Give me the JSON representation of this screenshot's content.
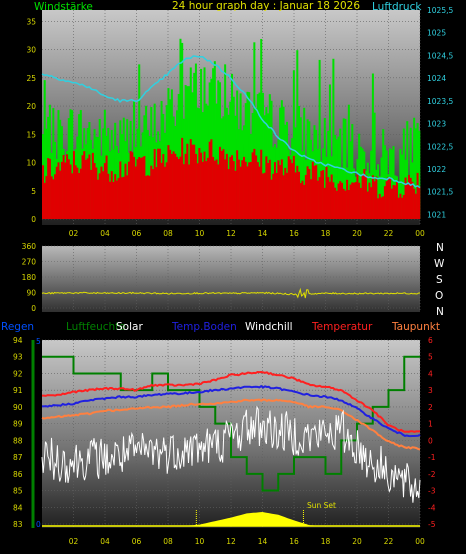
{
  "header": {
    "left_title": "Windstärke",
    "center_title": "24 hour graph day : Januar 18 2026",
    "right_title": "Luftdruck"
  },
  "legend_row": {
    "regen": "Regen",
    "luftfeuchte": "Luftfeuchte",
    "solar": "Solar",
    "temp_boden": "Temp.Boden",
    "windchill": "Windchill",
    "temperatur": "Temperatur",
    "taupunkt": "Taupunkt"
  },
  "direction_labels": [
    "N",
    "W",
    "S",
    "O",
    "N"
  ],
  "annotations": {
    "sun_set": "Sun Set",
    "sun_rise_set_label": "SunSet"
  },
  "colors": {
    "wind_gust": "#00e000",
    "wind_avg": "#e00000",
    "pressure": "#30d0e0",
    "direction": "#e0e000",
    "humidity": "#008000",
    "regen": "#0050ff",
    "solar": "#ffff00",
    "temp_boden": "#2020e0",
    "windchill": "#ffffff",
    "temperatur": "#ff2020",
    "taupunkt": "#ff8040",
    "grid": "#606060",
    "tick_yellow": "#d8d800"
  },
  "chart_data": [
    {
      "type": "line",
      "title": "24 hour graph day : Januar 18 2026",
      "x_ticks": [
        "02",
        "04",
        "06",
        "08",
        "10",
        "12",
        "14",
        "16",
        "18",
        "20",
        "22",
        "00"
      ],
      "y_left_label": "Windstärke",
      "y_left_ticks": [
        "0",
        "5",
        "10",
        "15",
        "20",
        "25",
        "30",
        "35"
      ],
      "y_left_range": [
        0,
        37
      ],
      "y_right_label": "Luftdruck",
      "y_right_ticks": [
        "1021",
        "1021,5",
        "1022",
        "1022,5",
        "1023",
        "1023,5",
        "1024",
        "1024,5",
        "1025",
        "1025,5"
      ],
      "y_right_range": [
        1020.9,
        1025.5
      ],
      "hours": [
        0,
        1,
        2,
        3,
        4,
        5,
        6,
        7,
        8,
        9,
        10,
        11,
        12,
        13,
        14,
        15,
        16,
        17,
        18,
        19,
        20,
        21,
        22,
        23,
        24
      ],
      "series": [
        {
          "name": "Windstärke Böen",
          "axis": "left",
          "values": [
            14,
            15,
            16,
            15,
            15,
            14,
            15,
            16,
            19,
            22,
            24,
            23,
            21,
            19,
            18,
            17,
            16,
            15,
            14,
            13,
            12,
            12,
            11,
            12,
            14
          ]
        },
        {
          "name": "Windstärke Mittel",
          "axis": "left",
          "values": [
            8,
            9,
            10,
            10,
            9,
            9,
            10,
            10,
            11,
            12,
            12,
            12,
            11,
            11,
            10,
            9,
            9,
            8,
            8,
            7,
            7,
            6,
            6,
            6,
            7
          ]
        },
        {
          "name": "Luftdruck",
          "axis": "right",
          "values": [
            1024.1,
            1024.0,
            1023.9,
            1023.8,
            1023.6,
            1023.5,
            1023.5,
            1023.8,
            1024.1,
            1024.4,
            1024.5,
            1024.3,
            1024.0,
            1023.6,
            1023.1,
            1022.7,
            1022.4,
            1022.2,
            1022.1,
            1022.0,
            1021.9,
            1021.8,
            1021.8,
            1021.7,
            1021.6
          ]
        }
      ]
    },
    {
      "type": "line",
      "y_ticks": [
        "0",
        "90",
        "180",
        "270",
        "360"
      ],
      "y_range": [
        0,
        360
      ],
      "hours": [
        0,
        2,
        4,
        6,
        8,
        10,
        12,
        14,
        16,
        18,
        20,
        22,
        24
      ],
      "series": [
        {
          "name": "Windrichtung",
          "values": [
            85,
            88,
            86,
            87,
            84,
            86,
            85,
            88,
            80,
            85,
            84,
            85,
            85
          ]
        }
      ]
    },
    {
      "type": "line",
      "x_ticks": [
        "02",
        "04",
        "06",
        "08",
        "10",
        "12",
        "14",
        "16",
        "18",
        "20",
        "22",
        "00"
      ],
      "y_left_ticks": [
        "83",
        "84",
        "85",
        "86",
        "87",
        "88",
        "89",
        "90",
        "91",
        "92",
        "93",
        "94"
      ],
      "y_left_range": [
        83,
        94
      ],
      "y_regen_ticks": [
        "0",
        "5"
      ],
      "y_right_ticks": [
        "-5",
        "-4",
        "-3",
        "-2",
        "-1",
        "0",
        "1",
        "2",
        "3",
        "4",
        "5",
        "6"
      ],
      "y_right_range": [
        -5,
        6
      ],
      "hours": [
        0,
        1,
        2,
        3,
        4,
        5,
        6,
        7,
        8,
        9,
        10,
        11,
        12,
        13,
        14,
        15,
        16,
        17,
        18,
        19,
        20,
        21,
        22,
        23,
        24
      ],
      "series": [
        {
          "name": "Luftfeuchte",
          "axis": "left",
          "values": [
            93,
            93,
            92,
            92,
            92,
            91,
            91,
            92,
            91,
            91,
            90,
            89,
            87,
            86,
            85,
            86,
            87,
            87,
            86,
            88,
            89,
            90,
            91,
            93,
            93
          ]
        },
        {
          "name": "Temperatur",
          "axis": "right",
          "values": [
            2.7,
            2.7,
            2.9,
            3.0,
            3.1,
            3.1,
            3.0,
            3.3,
            3.3,
            3.3,
            3.4,
            3.6,
            3.9,
            4.0,
            4.1,
            3.9,
            3.7,
            3.3,
            3.2,
            3.0,
            2.4,
            1.8,
            0.9,
            0.5,
            0.5
          ]
        },
        {
          "name": "Temp.Boden",
          "axis": "right",
          "values": [
            2.0,
            2.1,
            2.2,
            2.4,
            2.5,
            2.6,
            2.6,
            2.7,
            2.8,
            2.8,
            2.9,
            3.0,
            3.1,
            3.2,
            3.2,
            3.1,
            2.9,
            2.7,
            2.6,
            2.4,
            1.9,
            1.3,
            0.7,
            0.3,
            0.3
          ]
        },
        {
          "name": "Taupunkt",
          "axis": "right",
          "values": [
            1.3,
            1.4,
            1.5,
            1.6,
            1.8,
            1.8,
            1.9,
            2.0,
            2.0,
            2.1,
            2.2,
            2.2,
            2.3,
            2.4,
            2.4,
            2.4,
            2.3,
            2.0,
            2.0,
            1.8,
            1.2,
            0.6,
            -0.1,
            -0.4,
            -0.5
          ]
        },
        {
          "name": "Windchill",
          "axis": "right",
          "values": [
            -1.0,
            -1.2,
            -1.3,
            -1.0,
            -1.1,
            -0.9,
            -0.8,
            -0.6,
            -0.7,
            -0.5,
            -0.4,
            -0.3,
            0.2,
            0.8,
            0.9,
            0.5,
            0.4,
            0.2,
            0.4,
            0.6,
            -0.4,
            -1.4,
            -1.8,
            -2.6,
            -3.0
          ]
        },
        {
          "name": "Solar",
          "axis": "none",
          "values": [
            0,
            0,
            0,
            0,
            0,
            0,
            0,
            0,
            0,
            0,
            0.1,
            0.35,
            0.6,
            0.9,
            1.0,
            0.8,
            0.4,
            0.05,
            0,
            0,
            0,
            0,
            0,
            0,
            0
          ]
        },
        {
          "name": "Regen",
          "axis": "regen",
          "values": [
            0,
            0,
            0,
            0,
            0,
            0,
            0,
            0,
            0,
            0,
            0,
            0,
            0,
            0,
            0,
            0,
            0,
            0,
            0,
            0,
            0,
            0,
            0,
            0,
            0
          ]
        }
      ]
    }
  ]
}
